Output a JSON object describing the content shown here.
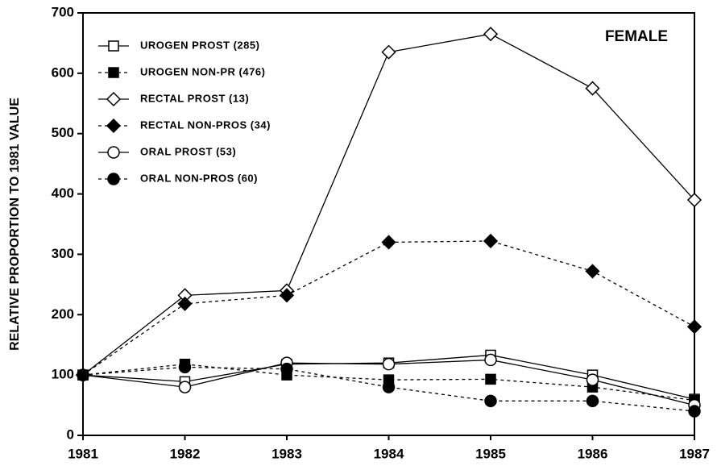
{
  "chart_data": {
    "type": "line",
    "annotation": "FEMALE",
    "y_label": "RELATIVE PROPORTION TO 1981 VALUE",
    "x": [
      1981,
      1982,
      1983,
      1984,
      1985,
      1986,
      1987
    ],
    "xlim": [
      1981,
      1987
    ],
    "xticks": [
      1981,
      1982,
      1983,
      1984,
      1985,
      1986,
      1987
    ],
    "ylim": [
      0,
      700
    ],
    "yticks": [
      0,
      100,
      200,
      300,
      400,
      500,
      600,
      700
    ],
    "legend": "upper left",
    "series": [
      {
        "name": "UROGEN PROST (285)",
        "color": "#000000",
        "marker": "square",
        "filled": false,
        "dashed": false,
        "values": [
          100,
          89,
          118,
          120,
          133,
          100,
          60
        ]
      },
      {
        "name": "UROGEN NON-PR (476)",
        "color": "#000000",
        "marker": "square",
        "filled": true,
        "dashed": true,
        "values": [
          100,
          118,
          100,
          92,
          93,
          80,
          58
        ]
      },
      {
        "name": "RECTAL PROST (13)",
        "color": "#000000",
        "marker": "diamond",
        "filled": false,
        "dashed": false,
        "values": [
          100,
          232,
          240,
          635,
          665,
          575,
          390
        ]
      },
      {
        "name": "RECTAL NON-PROS (34)",
        "color": "#000000",
        "marker": "diamond",
        "filled": true,
        "dashed": true,
        "values": [
          100,
          218,
          232,
          320,
          322,
          272,
          180
        ]
      },
      {
        "name": "ORAL PROST (53)",
        "color": "#000000",
        "marker": "circle",
        "filled": false,
        "dashed": false,
        "values": [
          100,
          80,
          120,
          118,
          125,
          92,
          50
        ]
      },
      {
        "name": "ORAL NON-PROS (60)",
        "color": "#000000",
        "marker": "circle",
        "filled": true,
        "dashed": true,
        "values": [
          100,
          113,
          110,
          80,
          57,
          57,
          40
        ]
      }
    ]
  }
}
